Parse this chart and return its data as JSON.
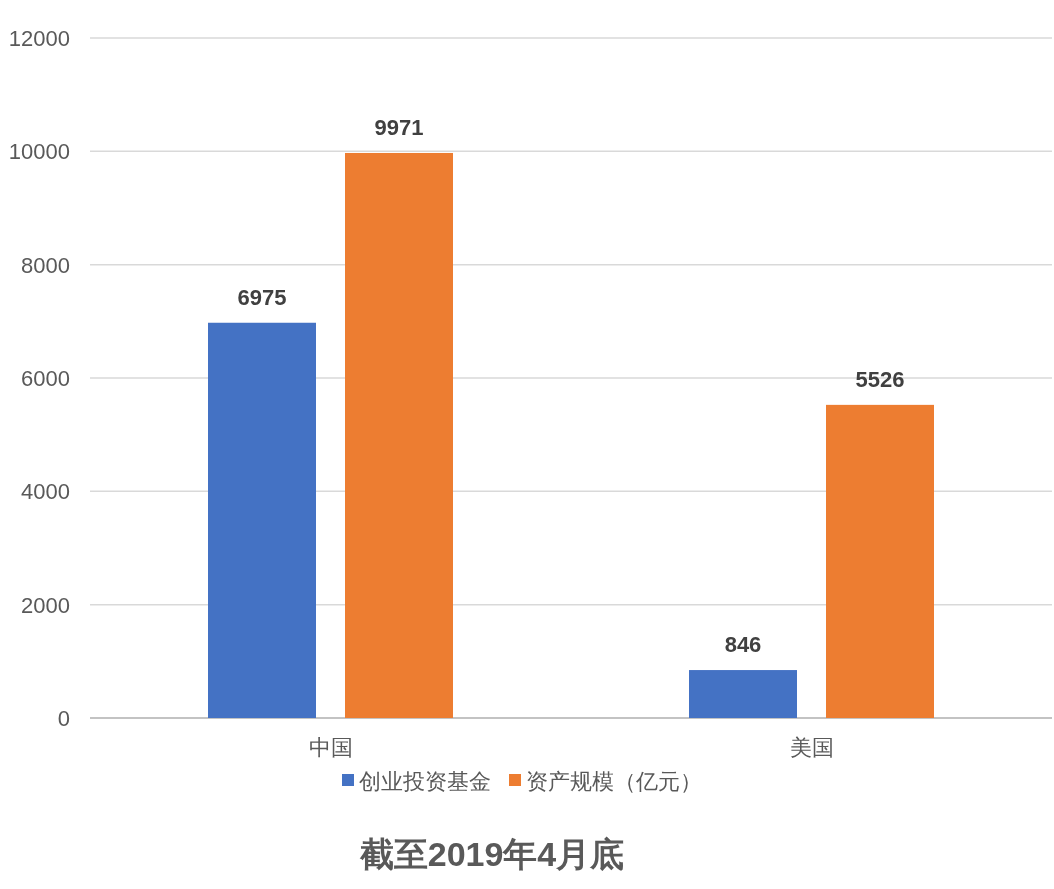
{
  "chart_data": {
    "type": "bar",
    "title": "截至2019年4月底",
    "categories": [
      "中国",
      "美国"
    ],
    "series": [
      {
        "name": "创业投资基金",
        "color": "#4472c4",
        "values": [
          6975,
          846
        ]
      },
      {
        "name": "资产规模（亿元）",
        "color": "#ed7d31",
        "values": [
          9971,
          5526
        ]
      }
    ],
    "ylim": [
      0,
      12000
    ],
    "yticks": [
      0,
      2000,
      4000,
      6000,
      8000,
      10000,
      12000
    ],
    "grid": "y",
    "legend": "bottom",
    "data_labels": true
  }
}
